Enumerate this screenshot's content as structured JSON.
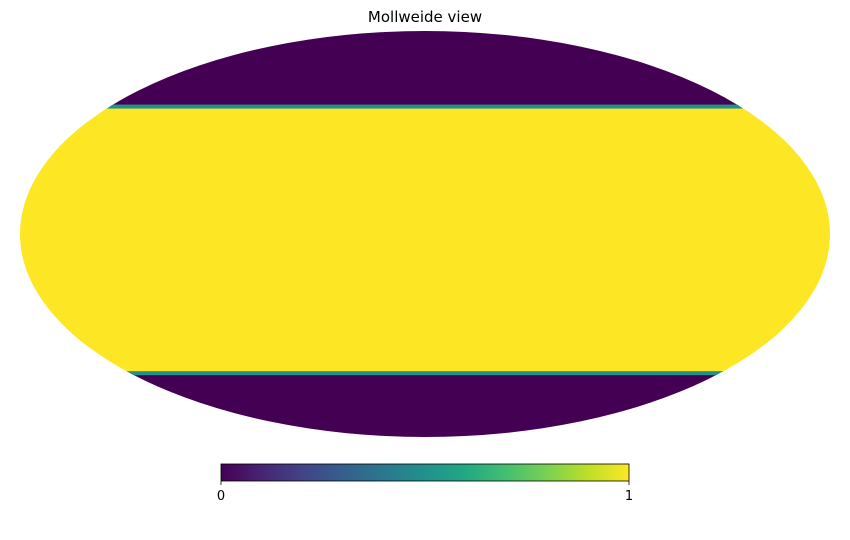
{
  "chart_data": {
    "type": "heatmap",
    "projection": "mollweide",
    "title": "Mollweide view",
    "bands": [
      {
        "lat_min": -90,
        "lat_max": -53,
        "value": 0
      },
      {
        "lat_min": -53,
        "lat_max": 48,
        "value": 1
      },
      {
        "lat_min": 48,
        "lat_max": 90,
        "value": 0
      }
    ],
    "colormap": "viridis",
    "colorbar": {
      "min": 0,
      "max": 1,
      "min_label": "0",
      "max_label": "1",
      "orientation": "horizontal",
      "placement": "bottom"
    },
    "colors": {
      "low": "#440154",
      "high": "#fde725",
      "edge": "#21918c"
    }
  }
}
